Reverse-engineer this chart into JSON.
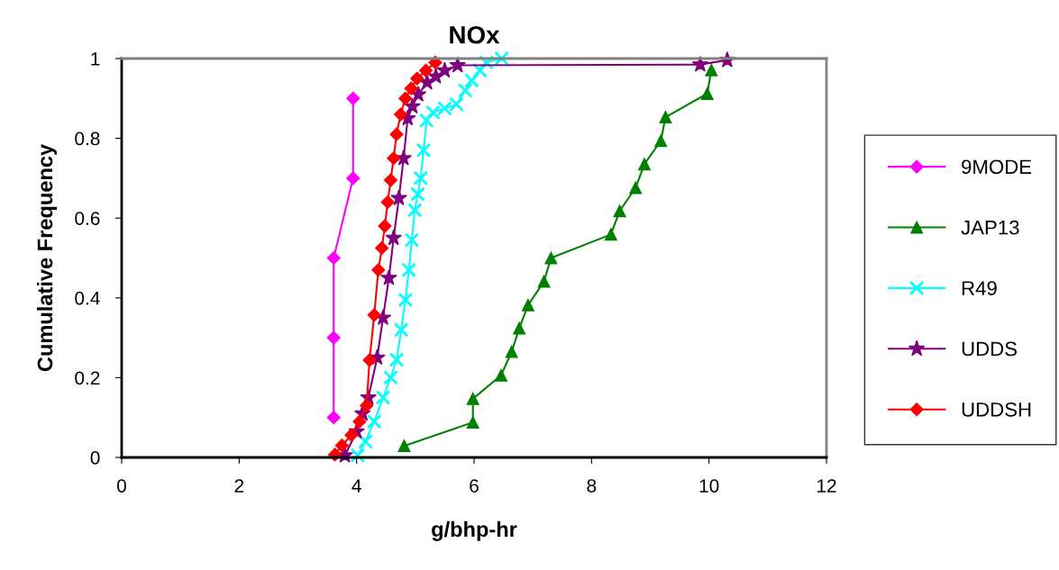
{
  "chart_data": {
    "type": "line",
    "title": "NOx",
    "xlabel": "g/bhp-hr",
    "ylabel": "Cumulative Frequency",
    "xlim": [
      0,
      12
    ],
    "xticks": [
      0,
      2,
      4,
      6,
      8,
      10,
      12
    ],
    "ylim": [
      0,
      1
    ],
    "yticks": [
      0,
      0.2,
      0.4,
      0.6,
      0.8,
      1
    ],
    "grid": false,
    "legend": "right",
    "series": [
      {
        "name": "9MODE",
        "color": "#ff00ff",
        "marker": "diamond",
        "x": [
          3.61,
          3.61,
          3.61,
          3.94,
          3.94
        ],
        "values": [
          0.1,
          0.3,
          0.5,
          0.7,
          0.9
        ]
      },
      {
        "name": "JAP13",
        "color": "#008000",
        "marker": "triangle",
        "x": [
          4.81,
          5.98,
          5.98,
          6.46,
          6.64,
          6.77,
          6.92,
          7.19,
          7.31,
          8.33,
          8.48,
          8.75,
          8.9,
          9.18,
          9.26,
          9.97,
          10.04
        ],
        "values": [
          0.029,
          0.088,
          0.147,
          0.206,
          0.265,
          0.324,
          0.382,
          0.441,
          0.5,
          0.559,
          0.618,
          0.676,
          0.735,
          0.794,
          0.853,
          0.912,
          0.971
        ]
      },
      {
        "name": "R49",
        "color": "#00ffff",
        "marker": "cross",
        "x": [
          4.02,
          4.15,
          4.3,
          4.45,
          4.58,
          4.68,
          4.76,
          4.83,
          4.89,
          4.94,
          4.99,
          5.04,
          5.09,
          5.14,
          5.19,
          5.3,
          5.5,
          5.7,
          5.85,
          5.96,
          6.1,
          6.21,
          6.47
        ],
        "values": [
          0.005,
          0.04,
          0.09,
          0.15,
          0.2,
          0.245,
          0.32,
          0.395,
          0.47,
          0.545,
          0.62,
          0.66,
          0.7,
          0.77,
          0.845,
          0.865,
          0.875,
          0.885,
          0.92,
          0.945,
          0.97,
          0.99,
          1.0
        ]
      },
      {
        "name": "UDDS",
        "color": "#800080",
        "marker": "star",
        "x": [
          3.8,
          4.0,
          4.1,
          4.2,
          4.35,
          4.45,
          4.55,
          4.63,
          4.72,
          4.8,
          4.87,
          4.95,
          5.05,
          5.2,
          5.35,
          5.5,
          5.72,
          9.85,
          10.31
        ],
        "values": [
          0.005,
          0.065,
          0.11,
          0.15,
          0.25,
          0.35,
          0.45,
          0.55,
          0.65,
          0.75,
          0.85,
          0.88,
          0.91,
          0.94,
          0.955,
          0.97,
          0.983,
          0.985,
          0.996
        ]
      },
      {
        "name": "UDDSH",
        "color": "#ff0000",
        "marker": "diamond",
        "x": [
          3.63,
          3.75,
          3.91,
          4.05,
          4.17,
          4.22,
          4.3,
          4.37,
          4.43,
          4.48,
          4.53,
          4.58,
          4.63,
          4.68,
          4.75,
          4.83,
          4.93,
          5.03,
          5.18,
          5.34
        ],
        "values": [
          0.007,
          0.03,
          0.056,
          0.09,
          0.13,
          0.244,
          0.357,
          0.47,
          0.525,
          0.58,
          0.64,
          0.695,
          0.75,
          0.81,
          0.86,
          0.9,
          0.925,
          0.95,
          0.97,
          0.99
        ]
      }
    ]
  }
}
